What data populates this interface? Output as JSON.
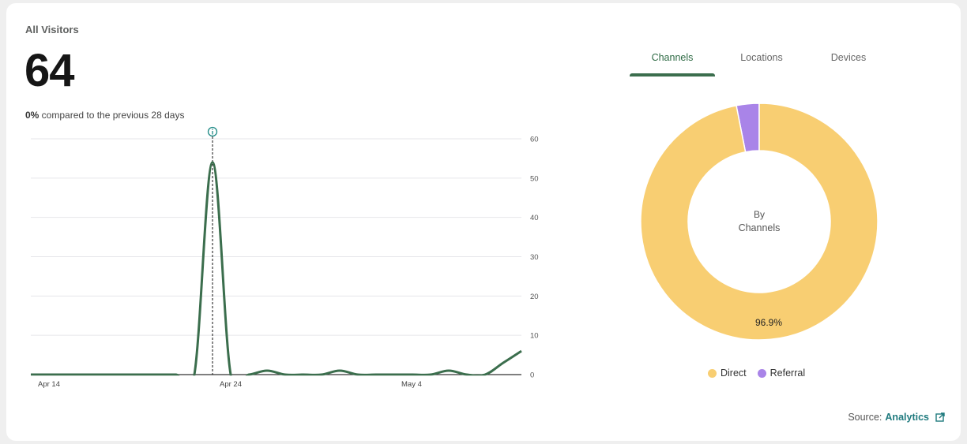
{
  "card": {
    "title": "All Visitors",
    "value": "64",
    "compare_pct": "0%",
    "compare_text": " compared to the previous 28 days"
  },
  "tabs": [
    {
      "label": "Channels",
      "active": true
    },
    {
      "label": "Locations",
      "active": false
    },
    {
      "label": "Devices",
      "active": false
    }
  ],
  "donut": {
    "center_line1": "By",
    "center_line2": "Channels",
    "label": "96.9%"
  },
  "legend": [
    {
      "label": "Direct",
      "color": "#f8ce72"
    },
    {
      "label": "Referral",
      "color": "#a984e8"
    }
  ],
  "source": {
    "prefix": "Source:",
    "link": "Analytics"
  },
  "colors": {
    "line": "#3b6e4d",
    "accent": "#1f7a7e",
    "direct": "#f8ce72",
    "referral": "#a984e8"
  },
  "chart_data": [
    {
      "type": "line",
      "title": "All Visitors",
      "x": [
        "Apr 13",
        "Apr 14",
        "Apr 15",
        "Apr 16",
        "Apr 17",
        "Apr 18",
        "Apr 19",
        "Apr 20",
        "Apr 21",
        "Apr 22",
        "Apr 23",
        "Apr 24",
        "Apr 25",
        "Apr 26",
        "Apr 27",
        "Apr 28",
        "Apr 29",
        "Apr 30",
        "May 1",
        "May 2",
        "May 3",
        "May 4",
        "May 5",
        "May 6",
        "May 7",
        "May 8",
        "May 9",
        "May 10"
      ],
      "series": [
        {
          "name": "Visitors",
          "values": [
            0,
            0,
            0,
            0,
            0,
            0,
            0,
            0,
            0,
            0,
            54,
            0,
            0,
            1,
            0,
            0,
            0,
            1,
            0,
            0,
            0,
            0,
            0,
            1,
            0,
            0,
            3,
            6
          ]
        }
      ],
      "xtick_labels": [
        "Apr 14",
        "Apr 24",
        "May 4"
      ],
      "ytick_labels": [
        "0",
        "10",
        "20",
        "30",
        "40",
        "50",
        "60"
      ],
      "ylim": [
        0,
        60
      ],
      "y_axis_position": "right",
      "grid": true,
      "annotation": {
        "x": "Apr 23",
        "type": "info-marker"
      }
    },
    {
      "type": "pie",
      "subtype": "donut",
      "title": "By Channels",
      "categories": [
        "Direct",
        "Referral"
      ],
      "values": [
        96.9,
        3.1
      ],
      "legend_position": "bottom"
    }
  ]
}
